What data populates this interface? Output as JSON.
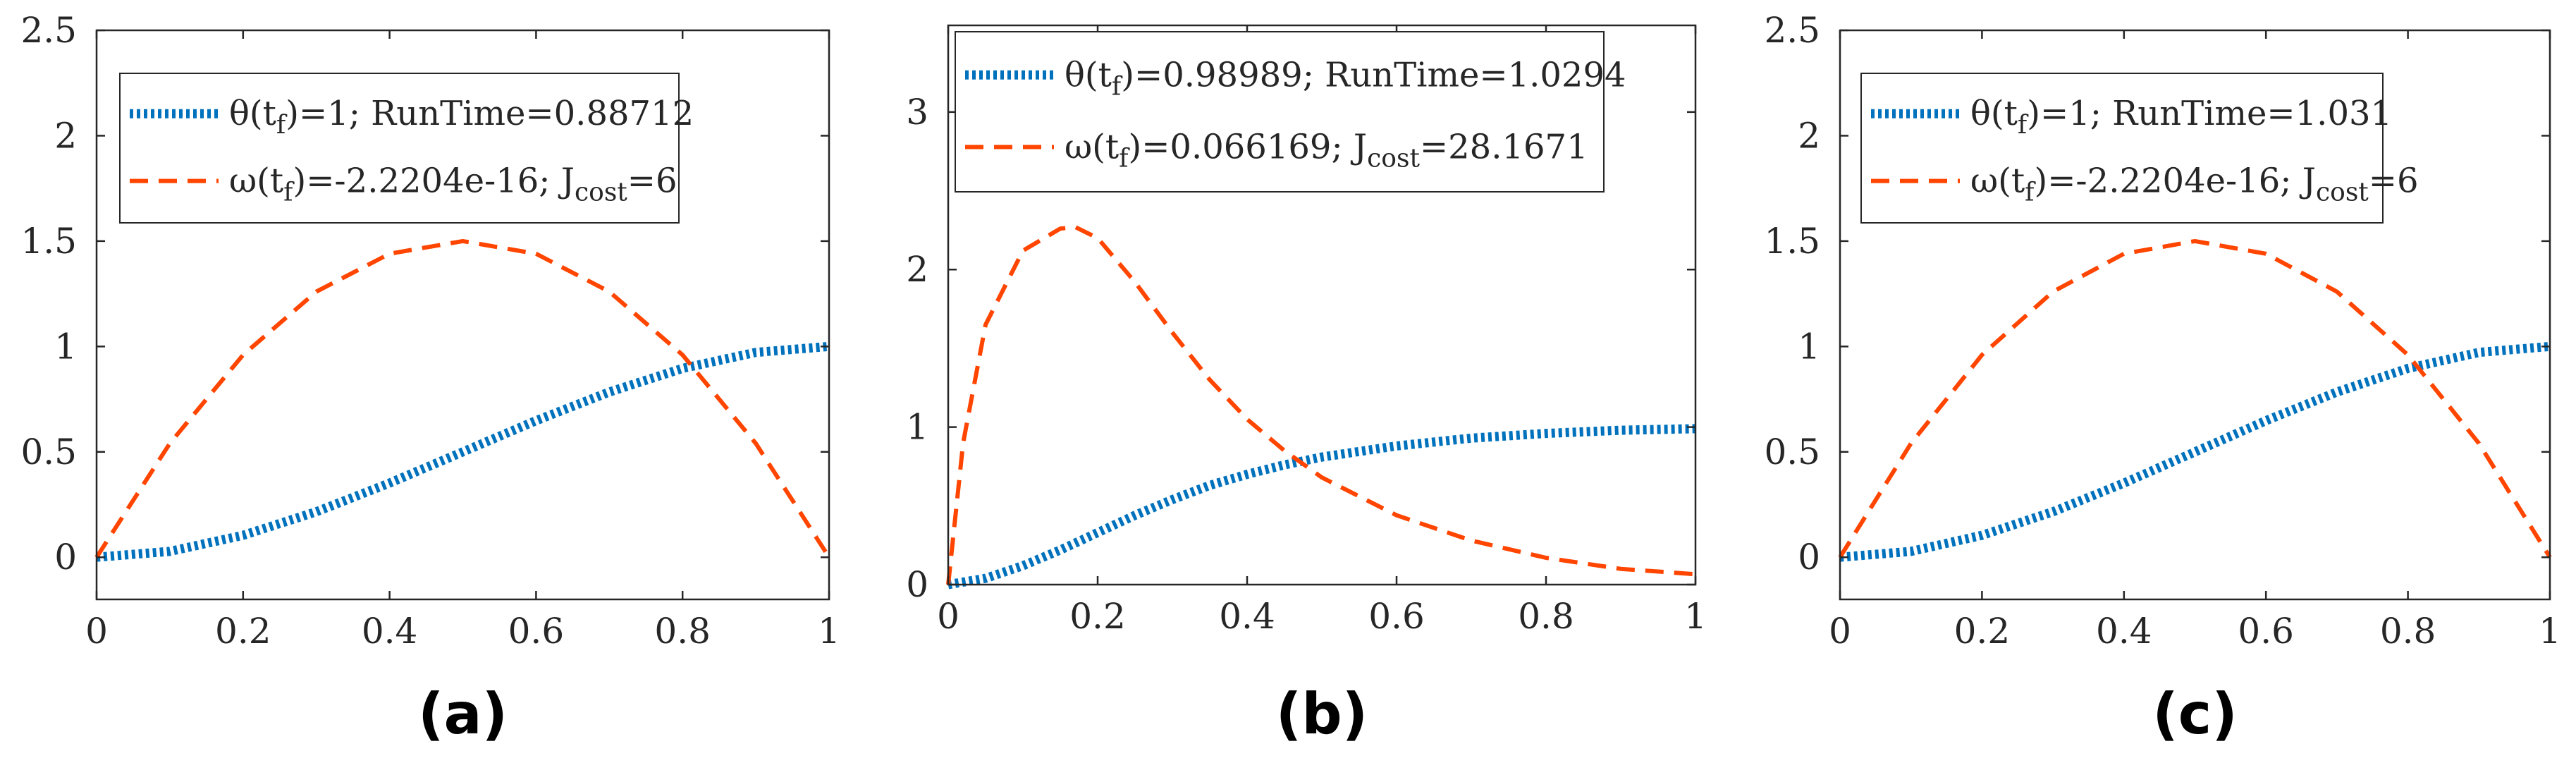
{
  "colors": {
    "theta": "#0072BD",
    "omega": "#FF4500",
    "axis": "#262626"
  },
  "chart_data": [
    {
      "type": "line",
      "panel_label": "(a)",
      "xlim": [
        0,
        1
      ],
      "ylim": [
        -0.2,
        2.5
      ],
      "xticks": [
        "0",
        "0.2",
        "0.4",
        "0.6",
        "0.8",
        "1"
      ],
      "yticks": [
        "0",
        "0.5",
        "1",
        "1.5",
        "2",
        "2.5"
      ],
      "legend_position": "top-left",
      "legend": [
        {
          "pre": "θ(t",
          "sub": "f",
          "post": ")=1;  RunTime=0.88712",
          "sub2": "",
          "post2": ""
        },
        {
          "pre": "ω(t",
          "sub": "f",
          "post": ")=-2.2204e-16; J",
          "sub2": "cost",
          "post2": "=6"
        }
      ],
      "series": [
        {
          "key": "theta",
          "style": "dotted",
          "x": [
            0,
            0.1,
            0.2,
            0.3,
            0.4,
            0.5,
            0.6,
            0.7,
            0.8,
            0.9,
            1.0
          ],
          "y": [
            0,
            0.028,
            0.104,
            0.216,
            0.352,
            0.5,
            0.648,
            0.784,
            0.896,
            0.972,
            1.0
          ]
        },
        {
          "key": "omega",
          "style": "dashed",
          "x": [
            0,
            0.1,
            0.2,
            0.3,
            0.4,
            0.5,
            0.6,
            0.7,
            0.8,
            0.9,
            1.0
          ],
          "y": [
            0,
            0.54,
            0.96,
            1.26,
            1.44,
            1.5,
            1.44,
            1.26,
            0.96,
            0.54,
            0
          ]
        }
      ]
    },
    {
      "type": "line",
      "panel_label": "(b)",
      "xlim": [
        0,
        1
      ],
      "ylim": [
        0,
        3.55
      ],
      "xticks": [
        "0",
        "0.2",
        "0.4",
        "0.6",
        "0.8",
        "1"
      ],
      "yticks": [
        "0",
        "1",
        "2",
        "3"
      ],
      "legend_position": "top-left",
      "legend": [
        {
          "pre": "θ(t",
          "sub": "f",
          "post": ")=0.98989;  RunTime=1.0294",
          "sub2": "",
          "post2": ""
        },
        {
          "pre": "ω(t",
          "sub": "f",
          "post": ")=0.066169; J",
          "sub2": "cost",
          "post2": "=28.1671"
        }
      ],
      "series": [
        {
          "key": "theta",
          "style": "dotted",
          "x": [
            0,
            0.05,
            0.1,
            0.15,
            0.2,
            0.25,
            0.3,
            0.35,
            0.4,
            0.45,
            0.5,
            0.6,
            0.7,
            0.8,
            0.9,
            1.0
          ],
          "y": [
            0,
            0.04,
            0.12,
            0.22,
            0.33,
            0.44,
            0.54,
            0.63,
            0.7,
            0.76,
            0.81,
            0.88,
            0.93,
            0.96,
            0.98,
            0.99
          ]
        },
        {
          "key": "omega",
          "style": "dashed",
          "x": [
            0,
            0.02,
            0.05,
            0.1,
            0.15,
            0.17,
            0.2,
            0.25,
            0.3,
            0.35,
            0.4,
            0.45,
            0.5,
            0.6,
            0.7,
            0.8,
            0.9,
            1.0
          ],
          "y": [
            0,
            0.9,
            1.65,
            2.12,
            2.26,
            2.27,
            2.2,
            1.92,
            1.6,
            1.3,
            1.05,
            0.85,
            0.68,
            0.44,
            0.28,
            0.17,
            0.1,
            0.066
          ]
        }
      ]
    },
    {
      "type": "line",
      "panel_label": "(c)",
      "xlim": [
        0,
        1
      ],
      "ylim": [
        -0.2,
        2.5
      ],
      "xticks": [
        "0",
        "0.2",
        "0.4",
        "0.6",
        "0.8",
        "1"
      ],
      "yticks": [
        "0",
        "0.5",
        "1",
        "1.5",
        "2",
        "2.5"
      ],
      "legend_position": "top-left",
      "legend": [
        {
          "pre": "θ(t",
          "sub": "f",
          "post": ")=1;  RunTime=1.031",
          "sub2": "",
          "post2": ""
        },
        {
          "pre": "ω(t",
          "sub": "f",
          "post": ")=-2.2204e-16; J",
          "sub2": "cost",
          "post2": "=6"
        }
      ],
      "series": [
        {
          "key": "theta",
          "style": "dotted",
          "x": [
            0,
            0.1,
            0.2,
            0.3,
            0.4,
            0.5,
            0.6,
            0.7,
            0.8,
            0.9,
            1.0
          ],
          "y": [
            0,
            0.028,
            0.104,
            0.216,
            0.352,
            0.5,
            0.648,
            0.784,
            0.896,
            0.972,
            1.0
          ]
        },
        {
          "key": "omega",
          "style": "dashed",
          "x": [
            0,
            0.1,
            0.2,
            0.3,
            0.4,
            0.5,
            0.6,
            0.7,
            0.8,
            0.9,
            1.0
          ],
          "y": [
            0,
            0.54,
            0.96,
            1.26,
            1.44,
            1.5,
            1.44,
            1.26,
            0.96,
            0.54,
            0
          ]
        }
      ]
    }
  ]
}
